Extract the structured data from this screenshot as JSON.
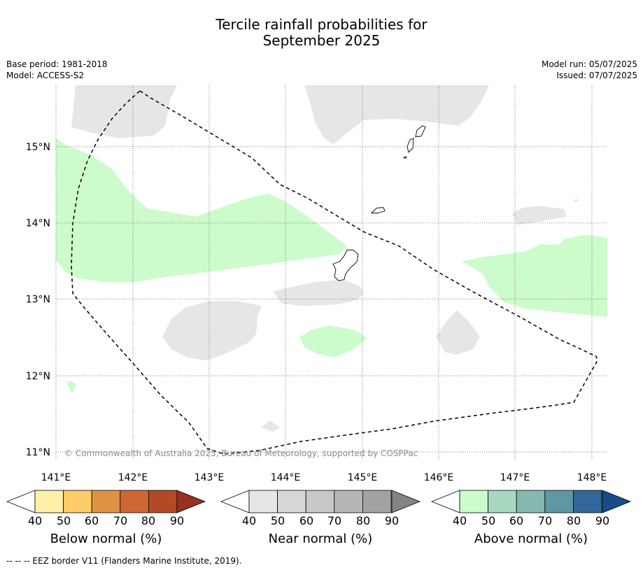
{
  "title_line1": "Tercile rainfall probabilities for",
  "title_line2": "September 2025",
  "meta_left": {
    "base_period": "Base period: 1981-2018",
    "model": "Model: ACCESS-S2"
  },
  "meta_right": {
    "model_run": "Model run: 05/07/2025",
    "issued": "Issued: 07/07/2025"
  },
  "map": {
    "lat_labels": [
      "15°N",
      "14°N",
      "13°N",
      "12°N",
      "11°N"
    ],
    "lon_labels": [
      "141°E",
      "142°E",
      "143°E",
      "144°E",
      "145°E",
      "146°E",
      "147°E",
      "148°E"
    ],
    "copyright": "© Commonwealth of Australia 2025, Bureau of Meteorology, supported by COSPPac"
  },
  "colorbars": [
    {
      "label": "Below normal (%)",
      "ticks": [
        "40",
        "50",
        "60",
        "70",
        "80",
        "90"
      ],
      "colors": [
        "#fff0a8",
        "#ffcc66",
        "#e09244",
        "#cf6635",
        "#b24a28",
        "#953121"
      ]
    },
    {
      "label": "Near normal (%)",
      "ticks": [
        "40",
        "50",
        "60",
        "70",
        "80",
        "90"
      ],
      "colors": [
        "#e6e6e6",
        "#d7d7d7",
        "#c8c8c8",
        "#b5b5b5",
        "#a3a3a3",
        "#848484"
      ]
    },
    {
      "label": "Above normal (%)",
      "ticks": [
        "40",
        "50",
        "60",
        "70",
        "80",
        "90"
      ],
      "colors": [
        "#ccfccc",
        "#a6d9bf",
        "#84b8b0",
        "#5f97a3",
        "#336699",
        "#174c88"
      ]
    }
  ],
  "legend_footer": "--  --  -- EEZ border V11 (Flanders Marine Institute, 2019)."
}
